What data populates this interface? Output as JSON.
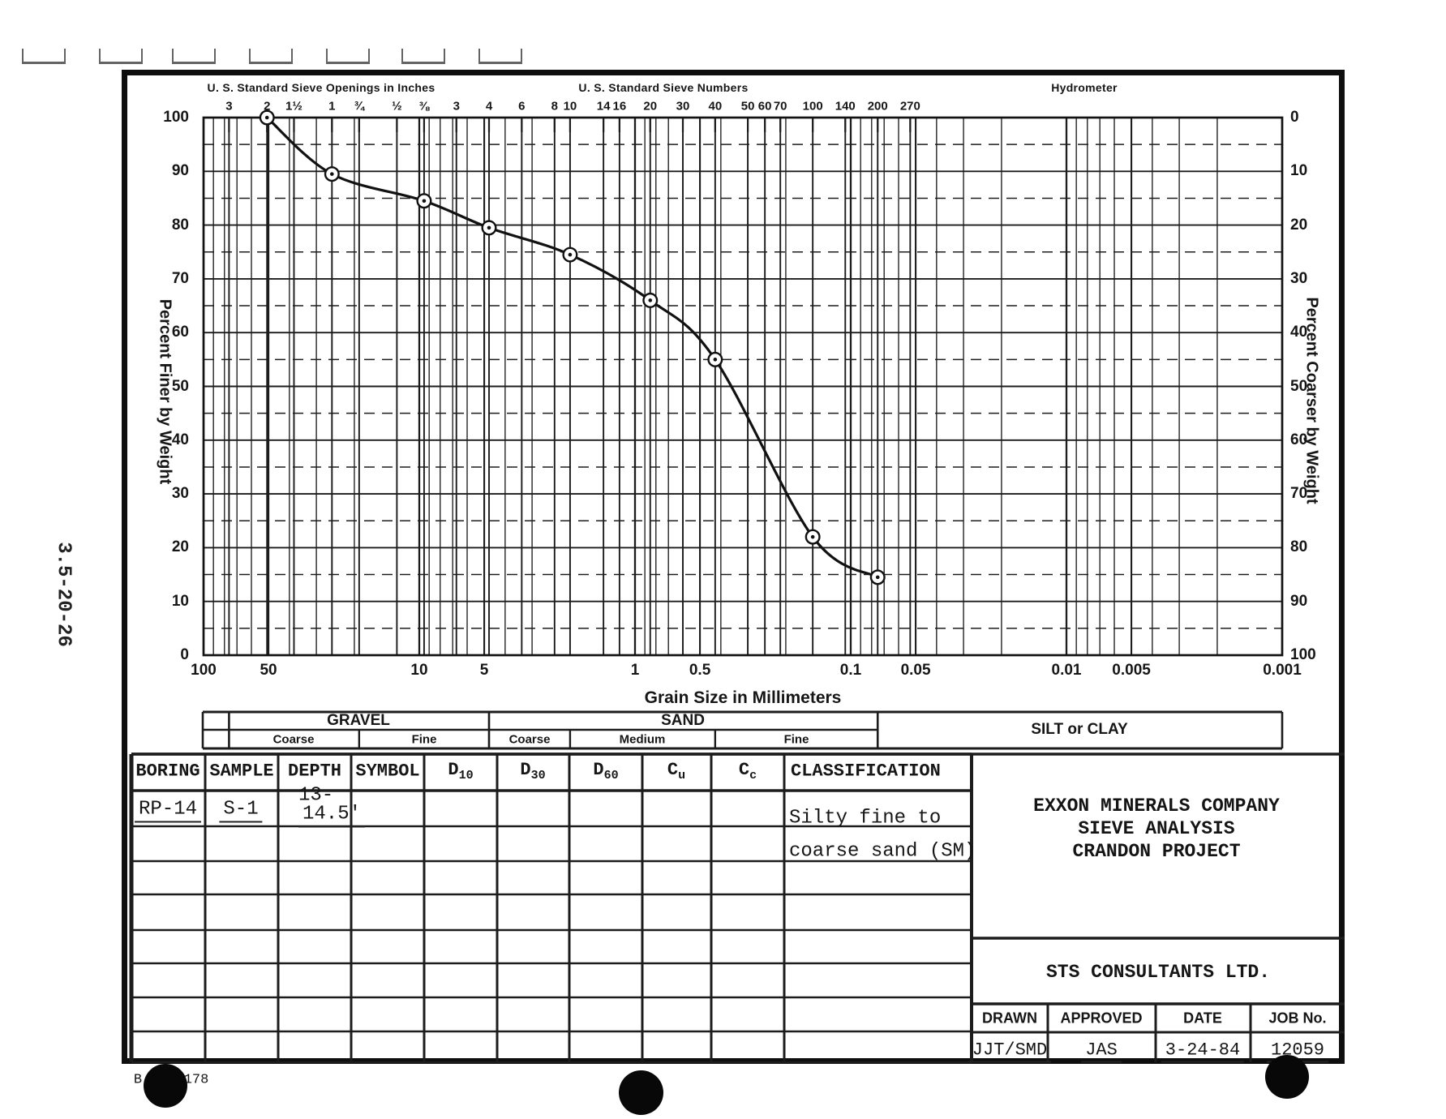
{
  "scan": {
    "side_label": "3.5-20-26",
    "form_stamp_prefix": "B",
    "form_stamp_suffix": "178"
  },
  "chart": {
    "title_inches": "U. S. Standard Sieve Openings in Inches",
    "title_numbers": "U. S. Standard Sieve Numbers",
    "title_hydrometer": "Hydrometer",
    "ylabel_left": "Percent Finer by Weight",
    "ylabel_right": "Percent Coarser by Weight",
    "xlabel": "Grain Size in Millimeters",
    "inch_sieve_labels": [
      [
        "3",
        76.2
      ],
      [
        "2",
        50.8
      ],
      [
        "1½",
        38.1
      ],
      [
        "1",
        25.4
      ],
      [
        "¾",
        19
      ],
      [
        "½",
        12.7
      ],
      [
        "⅜",
        9.5
      ]
    ],
    "number_sieve_labels": [
      [
        "3",
        6.73
      ],
      [
        "4",
        4.75
      ],
      [
        "6",
        3.35
      ],
      [
        "8",
        2.36
      ],
      [
        "10",
        2.0
      ],
      [
        "14",
        1.4
      ],
      [
        "16",
        1.18
      ],
      [
        "20",
        0.85
      ],
      [
        "30",
        0.6
      ],
      [
        "40",
        0.425
      ],
      [
        "50",
        0.3
      ],
      [
        "60",
        0.25
      ],
      [
        "70",
        0.212
      ],
      [
        "100",
        0.15
      ],
      [
        "140",
        0.106
      ],
      [
        "200",
        0.075
      ],
      [
        "270",
        0.053
      ]
    ],
    "x_tick_labels": [
      [
        "100",
        100
      ],
      [
        "50",
        50
      ],
      [
        "10",
        10
      ],
      [
        "5",
        5
      ],
      [
        "1",
        1
      ],
      [
        "0.5",
        0.5
      ],
      [
        "0.1",
        0.1
      ],
      [
        "0.05",
        0.05
      ],
      [
        "0.01",
        0.01
      ],
      [
        "0.005",
        0.005
      ],
      [
        "0.001",
        0.001
      ]
    ],
    "y_left_ticks": [
      100,
      90,
      80,
      70,
      60,
      50,
      40,
      30,
      20,
      10,
      0
    ],
    "y_right_ticks": [
      0,
      10,
      20,
      30,
      40,
      50,
      60,
      70,
      80,
      90,
      100
    ]
  },
  "chart_data": {
    "type": "line",
    "x_scale": "log",
    "x_range": [
      100,
      0.001
    ],
    "y_range": [
      0,
      100
    ],
    "grid": true,
    "xlabel": "Grain Size in Millimeters",
    "ylabel": "Percent Finer by Weight",
    "y2label": "Percent Coarser by Weight",
    "marker": "open-circle-dot",
    "series": [
      {
        "name": "RP-14 S-1",
        "points": [
          [
            50.8,
            100
          ],
          [
            25.4,
            89.5
          ],
          [
            9.5,
            84.5
          ],
          [
            4.75,
            79.5
          ],
          [
            2.0,
            74.5
          ],
          [
            0.85,
            66
          ],
          [
            0.425,
            55
          ],
          [
            0.15,
            22
          ],
          [
            0.075,
            14.5
          ]
        ]
      }
    ]
  },
  "size_bar": {
    "gravel": "GRAVEL",
    "sand": "SAND",
    "silt_clay": "SILT or CLAY",
    "gravel_subs": [
      "Coarse",
      "Fine"
    ],
    "sand_subs": [
      "Coarse",
      "Medium",
      "Fine"
    ]
  },
  "table": {
    "headers": [
      {
        "label": "BORING"
      },
      {
        "label": "SAMPLE"
      },
      {
        "label": "DEPTH"
      },
      {
        "label": "SYMBOL"
      },
      {
        "label": "D",
        "sub": "10"
      },
      {
        "label": "D",
        "sub": "30"
      },
      {
        "label": "D",
        "sub": "60"
      },
      {
        "label": "C",
        "sub": "u"
      },
      {
        "label": "C",
        "sub": "c"
      },
      {
        "label": "CLASSIFICATION"
      }
    ],
    "row": {
      "boring": "RP-14",
      "sample": "S-1",
      "depth_line1": "13-",
      "depth_line2": "14.5'",
      "classification_line1": "Silty fine to",
      "classification_line2": "coarse sand (SM)"
    }
  },
  "title_block": {
    "company_lines": [
      "EXXON MINERALS COMPANY",
      "SIEVE ANALYSIS",
      "CRANDON PROJECT"
    ],
    "firm": "STS CONSULTANTS LTD.",
    "fields": [
      {
        "label": "DRAWN",
        "value": "JJT/SMD"
      },
      {
        "label": "APPROVED",
        "value": "JAS"
      },
      {
        "label": "DATE",
        "value": "3-24-84"
      },
      {
        "label": "JOB No.",
        "value": "12059"
      }
    ]
  }
}
